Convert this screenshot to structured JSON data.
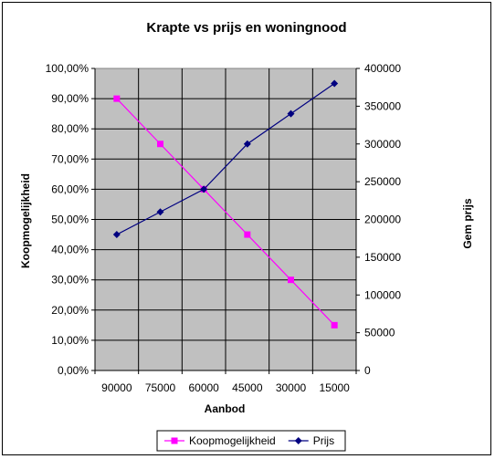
{
  "chart_data": {
    "type": "line",
    "title": "Krapte vs prijs en woningnood",
    "xlabel": "Aanbod",
    "ylabel_left": "Koopmogelijkheid",
    "ylabel_right": "Gem prijs",
    "categories": [
      "90000",
      "75000",
      "60000",
      "45000",
      "30000",
      "15000"
    ],
    "left_axis": {
      "ylim": [
        0,
        1
      ],
      "ticks": [
        "0,00%",
        "10,00%",
        "20,00%",
        "30,00%",
        "40,00%",
        "50,00%",
        "60,00%",
        "70,00%",
        "80,00%",
        "90,00%",
        "100,00%"
      ]
    },
    "right_axis": {
      "ylim": [
        0,
        400000
      ],
      "ticks": [
        "0",
        "50000",
        "100000",
        "150000",
        "200000",
        "250000",
        "300000",
        "350000",
        "400000"
      ]
    },
    "grid": true,
    "plot_background": "#c0c0c0",
    "legend_position": "bottom",
    "series": [
      {
        "name": "Koopmogelijkheid",
        "axis": "left",
        "color": "#ff00ff",
        "marker": "square",
        "values": [
          0.9,
          0.75,
          0.6,
          0.45,
          0.3,
          0.15
        ]
      },
      {
        "name": "Prijs",
        "axis": "right",
        "color": "#000080",
        "marker": "diamond",
        "values": [
          180000,
          210000,
          240000,
          300000,
          340000,
          380000
        ]
      }
    ]
  }
}
